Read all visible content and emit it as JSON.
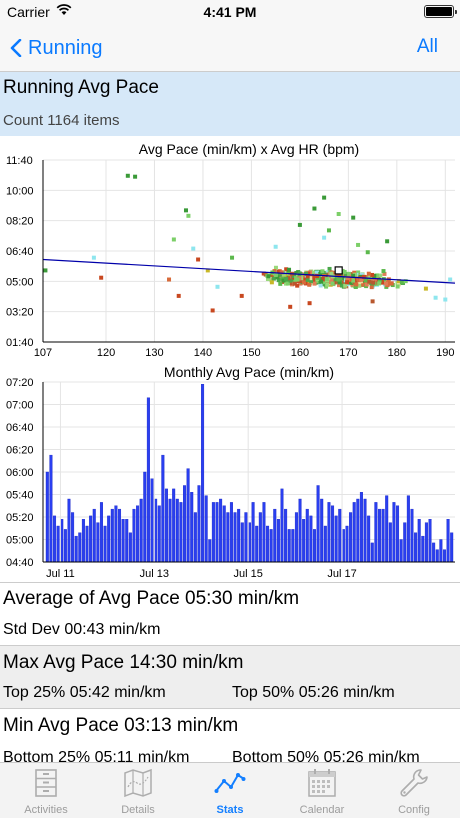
{
  "status": {
    "carrier": "Carrier",
    "time": "4:41 PM"
  },
  "nav": {
    "back_label": "Running",
    "all_label": "All"
  },
  "header": {
    "title": "Running Avg Pace",
    "count": "Count 1164 items"
  },
  "colors": {
    "accent": "#0a7aff",
    "bar": "#2a3ff0",
    "header_bg": "#d6e8f8",
    "trend": "#0000aa"
  },
  "chart_data": [
    {
      "type": "scatter",
      "title": "Avg Pace (min/km) x Avg HR (bpm)",
      "x_ticks": [
        "107",
        "120",
        "130",
        "140",
        "150",
        "160",
        "170",
        "180",
        "190"
      ],
      "y_ticks": [
        "11:40",
        "10:00",
        "08:20",
        "06:40",
        "05:00",
        "03:20",
        "01:40"
      ],
      "xlim": [
        107,
        192
      ],
      "ylim_minutes": [
        1.667,
        11.667
      ],
      "grid": true,
      "trend_line": [
        [
          107,
          6.2
        ],
        [
          192,
          4.9
        ]
      ],
      "highlight_point": [
        168,
        5.6
      ],
      "points_note": "1164 points, densest around HR 150-185 and pace 4:30-6:00"
    },
    {
      "type": "bar",
      "title": "Monthly Avg Pace (min/km)",
      "x_ticks": [
        "Jul 11",
        "Jul 13",
        "Jul 15",
        "Jul 17"
      ],
      "y_ticks": [
        "07:20",
        "07:00",
        "06:40",
        "06:20",
        "06:00",
        "05:40",
        "05:20",
        "05:00",
        "04:40"
      ],
      "ylim_minutes": [
        4.667,
        7.333
      ],
      "grid": true,
      "values_minutes": [
        6.0,
        6.25,
        5.35,
        5.2,
        5.3,
        5.15,
        5.6,
        5.4,
        5.05,
        5.1,
        5.3,
        5.2,
        5.35,
        5.45,
        5.25,
        5.55,
        5.2,
        5.35,
        5.45,
        5.5,
        5.45,
        5.3,
        5.3,
        5.1,
        5.45,
        5.5,
        5.6,
        6.0,
        7.1,
        5.9,
        5.6,
        5.5,
        6.25,
        5.75,
        5.6,
        5.75,
        5.6,
        5.55,
        5.8,
        6.05,
        5.7,
        5.4,
        5.8,
        7.3,
        5.65,
        5.0,
        5.55,
        5.55,
        5.6,
        5.5,
        5.4,
        5.55,
        5.4,
        5.45,
        5.25,
        5.4,
        5.25,
        5.55,
        5.2,
        5.4,
        5.55,
        5.2,
        5.15,
        5.45,
        5.3,
        5.75,
        5.45,
        5.15,
        5.15,
        5.4,
        5.6,
        5.3,
        5.45,
        5.35,
        5.15,
        5.8,
        5.6,
        5.2,
        5.55,
        5.5,
        5.35,
        5.45,
        5.15,
        5.2,
        5.4,
        5.55,
        5.6,
        5.7,
        5.6,
        5.35,
        4.95,
        5.55,
        5.45,
        5.45,
        5.65,
        5.25,
        5.55,
        5.5,
        5.0,
        5.25,
        5.65,
        5.45,
        5.1,
        5.3,
        5.05,
        5.25,
        5.3,
        4.95,
        4.85,
        5.0,
        4.85,
        5.3,
        5.1
      ]
    }
  ],
  "stats": {
    "average": "Average of Avg Pace 05:30 min/km",
    "std_dev": "Std Dev 00:43 min/km",
    "max": "Max Avg Pace 14:30 min/km",
    "top25": "Top 25% 05:42 min/km",
    "top50": "Top 50% 05:26 min/km",
    "min": "Min Avg Pace 03:13 min/km",
    "bottom25": "Bottom 25% 05:11 min/km",
    "bottom50": "Bottom 50% 05:26 min/km"
  },
  "tabs": [
    {
      "label": "Activities",
      "icon": "cabinet-icon",
      "active": false
    },
    {
      "label": "Details",
      "icon": "map-icon",
      "active": false
    },
    {
      "label": "Stats",
      "icon": "stats-chart-icon",
      "active": true
    },
    {
      "label": "Calendar",
      "icon": "calendar-icon",
      "active": false
    },
    {
      "label": "Config",
      "icon": "wrench-icon",
      "active": false
    }
  ]
}
